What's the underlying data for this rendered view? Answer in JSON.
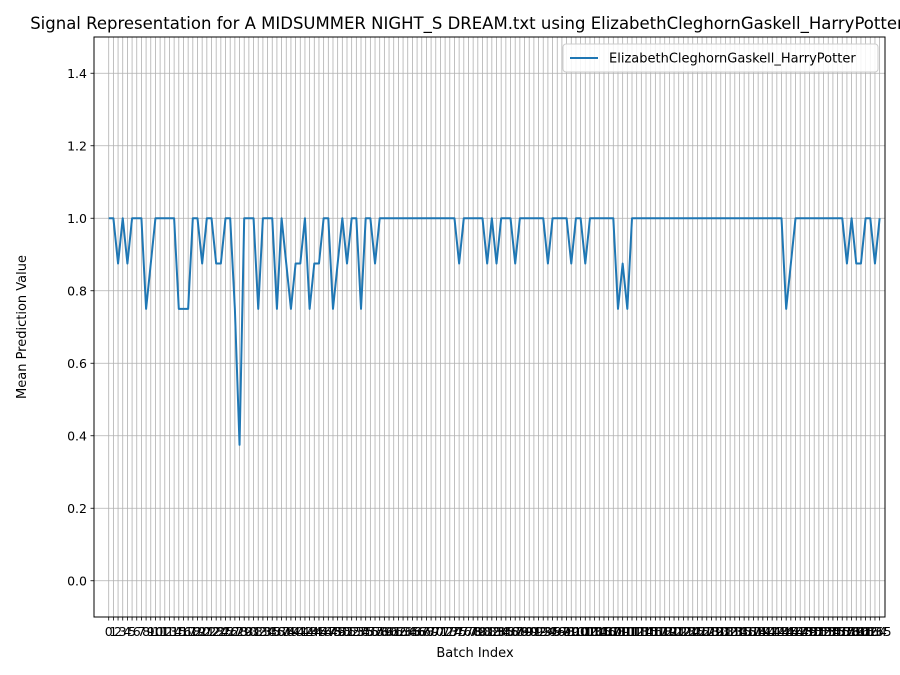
{
  "chart_data": {
    "type": "line",
    "title": "Signal Representation for A MIDSUMMER NIGHT_S DREAM.txt using ElizabethCleghornGaskell_HarryPotter",
    "xlabel": "Batch Index",
    "ylabel": "Mean Prediction Value",
    "ylim": [
      -0.1,
      1.5
    ],
    "xlim": [
      -3.15,
      166.15
    ],
    "yticks": [
      "0.0",
      "0.2",
      "0.4",
      "0.6",
      "0.8",
      "1.0",
      "1.2",
      "1.4"
    ],
    "grid": true,
    "legend_position": "top-right",
    "series": [
      {
        "name": "ElizabethCleghornGaskell_HarryPotter",
        "color": "#1f77b4",
        "values": [
          1.0,
          1.0,
          0.875,
          1.0,
          0.875,
          1.0,
          1.0,
          1.0,
          0.75,
          0.875,
          1.0,
          1.0,
          1.0,
          1.0,
          1.0,
          0.75,
          0.75,
          0.75,
          1.0,
          1.0,
          0.875,
          1.0,
          1.0,
          0.875,
          0.875,
          1.0,
          1.0,
          0.75,
          0.375,
          1.0,
          1.0,
          1.0,
          0.75,
          1.0,
          1.0,
          1.0,
          0.75,
          1.0,
          0.875,
          0.75,
          0.875,
          0.875,
          1.0,
          0.75,
          0.875,
          0.875,
          1.0,
          1.0,
          0.75,
          0.875,
          1.0,
          0.875,
          1.0,
          1.0,
          0.75,
          1.0,
          1.0,
          0.875,
          1.0,
          1.0,
          1.0,
          1.0,
          1.0,
          1.0,
          1.0,
          1.0,
          1.0,
          1.0,
          1.0,
          1.0,
          1.0,
          1.0,
          1.0,
          1.0,
          1.0,
          0.875,
          1.0,
          1.0,
          1.0,
          1.0,
          1.0,
          0.875,
          1.0,
          0.875,
          1.0,
          1.0,
          1.0,
          0.875,
          1.0,
          1.0,
          1.0,
          1.0,
          1.0,
          1.0,
          0.875,
          1.0,
          1.0,
          1.0,
          1.0,
          0.875,
          1.0,
          1.0,
          0.875,
          1.0,
          1.0,
          1.0,
          1.0,
          1.0,
          1.0,
          0.75,
          0.875,
          0.75,
          1.0,
          1.0,
          1.0,
          1.0,
          1.0,
          1.0,
          1.0,
          1.0,
          1.0,
          1.0,
          1.0,
          1.0,
          1.0,
          1.0,
          1.0,
          1.0,
          1.0,
          1.0,
          1.0,
          1.0,
          1.0,
          1.0,
          1.0,
          1.0,
          1.0,
          1.0,
          1.0,
          1.0,
          1.0,
          1.0,
          1.0,
          1.0,
          1.0,
          0.75,
          0.875,
          1.0,
          1.0,
          1.0,
          1.0,
          1.0,
          1.0,
          1.0,
          1.0,
          1.0,
          1.0,
          1.0,
          0.875,
          1.0,
          0.875,
          0.875,
          1.0,
          1.0,
          0.875,
          1.0
        ]
      }
    ]
  }
}
